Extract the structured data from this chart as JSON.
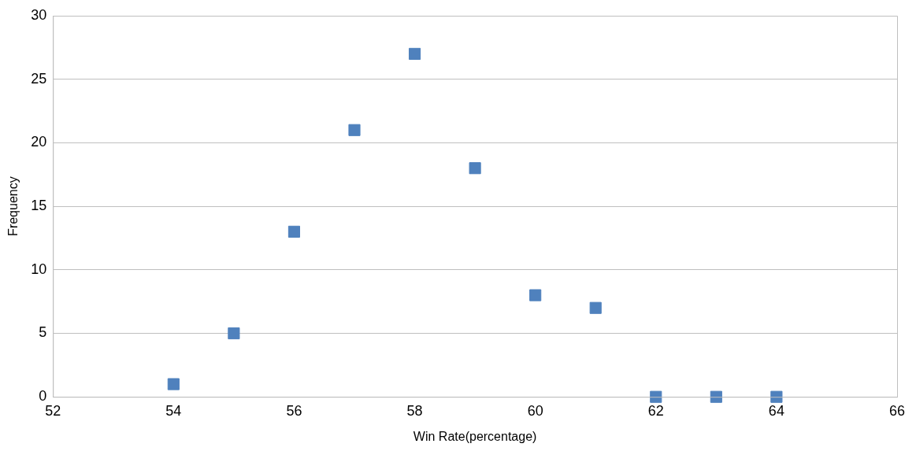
{
  "chart_data": {
    "type": "scatter",
    "xlabel": "Win Rate(percentage)",
    "ylabel": "Frequency",
    "x": [
      54,
      55,
      56,
      57,
      58,
      59,
      60,
      61,
      62,
      63,
      64
    ],
    "series": [
      {
        "color": "#4f81bd",
        "values": [
          1,
          5,
          13,
          21,
          27,
          18,
          8,
          7,
          0,
          0,
          0
        ]
      }
    ],
    "xlim": [
      52,
      66
    ],
    "xticks": [
      52,
      54,
      56,
      58,
      60,
      62,
      64,
      66
    ],
    "ylim": [
      0,
      30
    ],
    "yticks": [
      0,
      5,
      10,
      15,
      20,
      25,
      30
    ],
    "grid": "y",
    "legend": false,
    "marker": "square"
  }
}
